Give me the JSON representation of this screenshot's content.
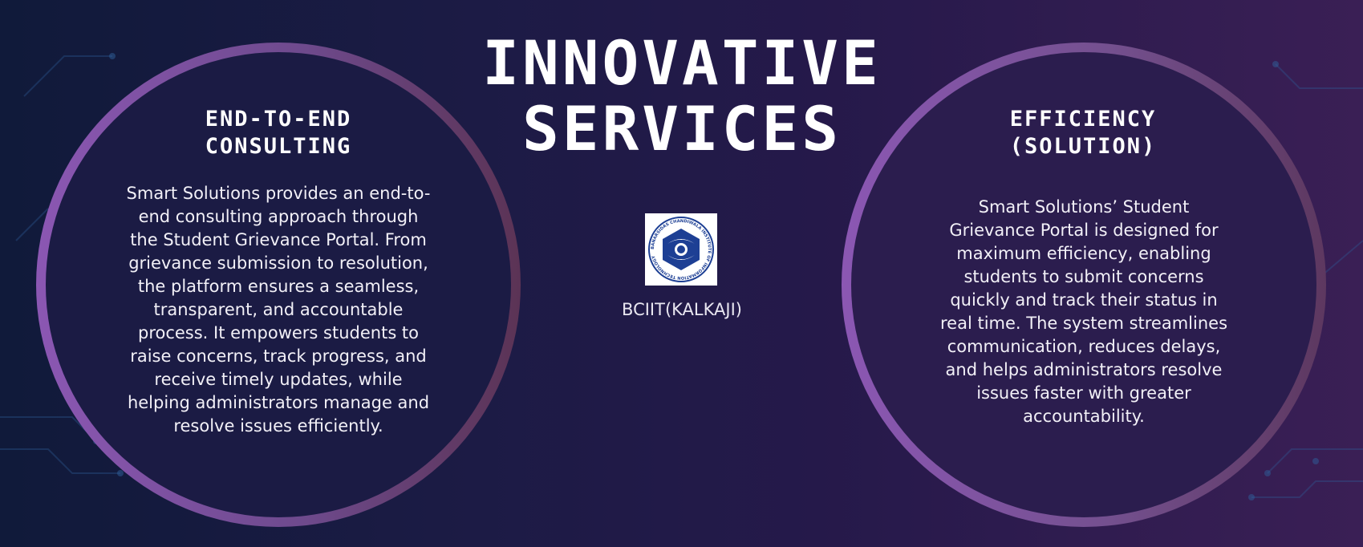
{
  "title": "INNOVATIVE SERVICES",
  "left_card": {
    "heading_line1": "END-TO-END",
    "heading_line2": "CONSULTING",
    "body": "Smart Solutions provides an end-to-end consulting approach through the Student Grievance Portal. From grievance submission to resolution, the platform ensures a seamless, transparent, and accountable process. It empowers students to raise concerns, track progress, and receive timely updates, while helping administrators manage and resolve issues efficiently."
  },
  "right_card": {
    "heading_line1": "EFFICIENCY",
    "heading_line2": "(SOLUTION)",
    "body": "Smart Solutions’ Student Grievance Portal is designed for maximum efficiency, enabling students to submit concerns quickly and track their status in real time. The system streamlines communication, reduces delays, and helps administrators resolve issues faster with greater accountability."
  },
  "logo": {
    "icon": "institute-emblem-icon",
    "seal_text": "BANARSIDAS CHANDIWALA INSTITUTE OF INFORMATION TECHNOLOGY",
    "label": "BCIIT(KALKAJI)"
  },
  "colors": {
    "ring_accent": "#8b57b3",
    "emblem_blue": "#1d3f94"
  }
}
